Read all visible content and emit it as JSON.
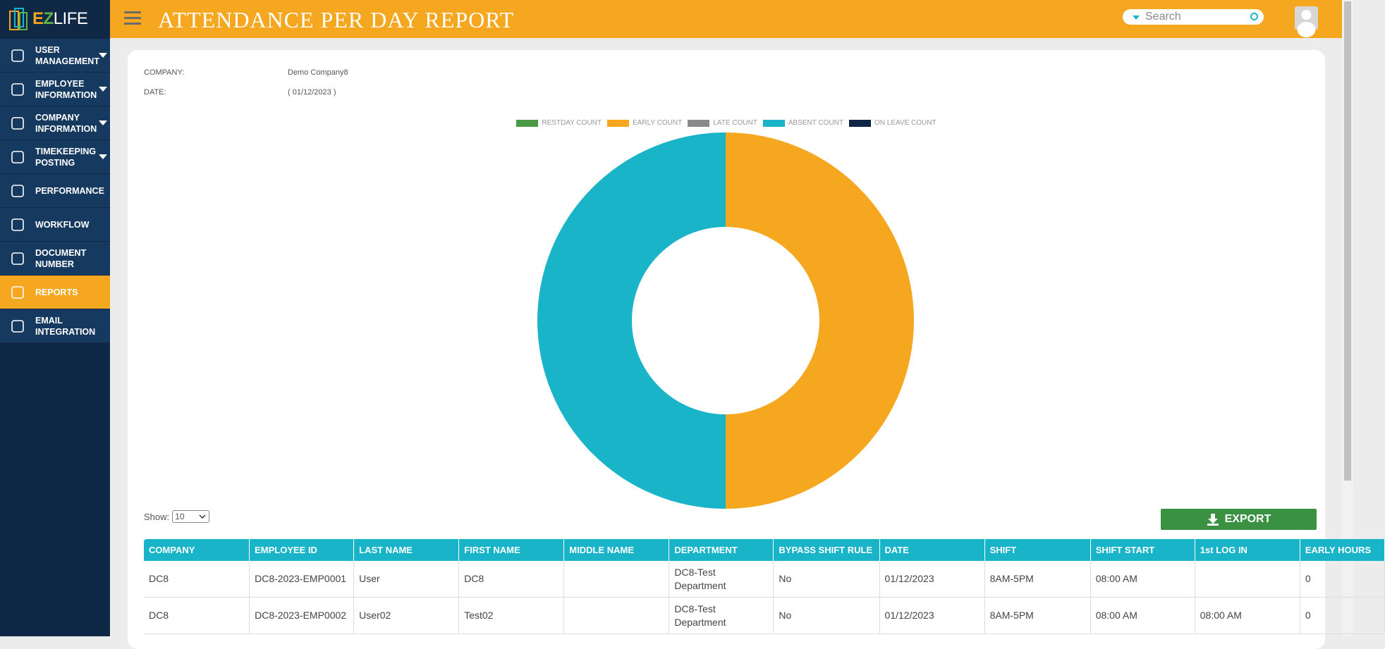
{
  "sidebar": {
    "logo": {
      "first": "E",
      "second": "Z",
      "rest": "LIFE"
    },
    "menu": [
      {
        "label": "USER MANAGEMENT",
        "dropdown": true,
        "active": false
      },
      {
        "label": "EMPLOYEE INFORMATION",
        "dropdown": true,
        "active": false
      },
      {
        "label": "COMPANY INFORMATION",
        "dropdown": true,
        "active": false
      },
      {
        "label": "TIMEKEEPING POSTING",
        "dropdown": true,
        "active": false
      },
      {
        "label": "PERFORMANCE",
        "dropdown": false,
        "active": false
      },
      {
        "label": "WORKFLOW",
        "dropdown": false,
        "active": false
      },
      {
        "label": "DOCUMENT NUMBER",
        "dropdown": false,
        "active": false
      },
      {
        "label": "REPORTS",
        "dropdown": false,
        "active": true
      },
      {
        "label": "EMAIL INTEGRATION",
        "dropdown": false,
        "active": false
      }
    ]
  },
  "header": {
    "title": "ATTENDANCE PER DAY REPORT",
    "search_placeholder": "Search"
  },
  "report": {
    "company_label": "COMPANY:",
    "company_value": "Demo Company8",
    "date_label": "DATE:",
    "date_value": "( 01/12/2023 )"
  },
  "chart_data": {
    "type": "doughnut",
    "categories": [
      "RESTDAY COUNT",
      "EARLY COUNT",
      "LATE COUNT",
      "ABSENT COUNT",
      "ON LEAVE COUNT"
    ],
    "values": [
      0,
      1,
      0,
      1,
      0
    ],
    "colors": [
      "#4a9a45",
      "#f5a81f",
      "#8a8a8a",
      "#1ab4c9",
      "#0f2545"
    ]
  },
  "table": {
    "show_label": "Show:",
    "page_size": "10",
    "export_label": "EXPORT",
    "columns": [
      "COMPANY",
      "EMPLOYEE ID",
      "LAST NAME",
      "FIRST NAME",
      "MIDDLE NAME",
      "DEPARTMENT",
      "BYPASS SHIFT RULE",
      "DATE",
      "SHIFT",
      "SHIFT START",
      "1st LOG IN",
      "EARLY HOURS"
    ],
    "rows": [
      [
        "DC8",
        "DC8-2023-EMP0001",
        "User",
        "DC8",
        null,
        "DC8-Test Department",
        "No",
        "01/12/2023",
        "8AM-5PM",
        "08:00 AM",
        null,
        "0"
      ],
      [
        "DC8",
        "DC8-2023-EMP0002",
        "User02",
        "Test02",
        null,
        "DC8-Test Department",
        "No",
        "01/12/2023",
        "8AM-5PM",
        "08:00 AM",
        "08:00 AM",
        "0"
      ]
    ]
  }
}
